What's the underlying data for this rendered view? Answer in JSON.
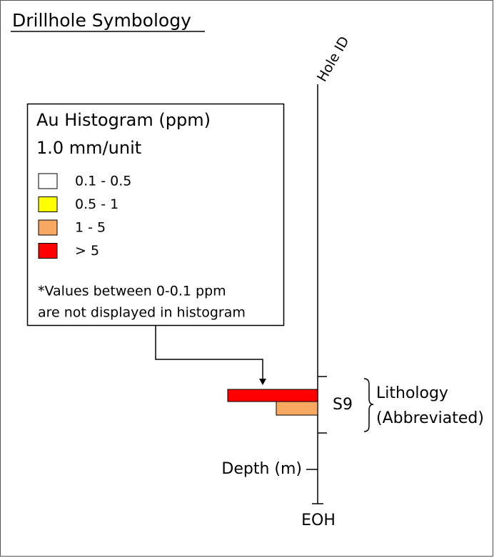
{
  "title": "Drillhole Symbology",
  "hole_label": "Hole ID",
  "legend": {
    "title": "Au Histogram (ppm)",
    "scale": "1.0 mm/unit",
    "items": [
      {
        "label": "0.1 - 0.5",
        "color": "#ffffff"
      },
      {
        "label": "0.5 - 1",
        "color": "#ffff00"
      },
      {
        "label": "1 - 5",
        "color": "#f9a862"
      },
      {
        "label": "> 5",
        "color": "#ff0000"
      }
    ],
    "note": [
      "*Values between 0-0.1 ppm",
      "are not displayed in histogram"
    ]
  },
  "interval_code": "S9",
  "lithology": [
    "Lithology",
    "(Abbreviated)"
  ],
  "depth_label": "Depth (m)",
  "end_label": "EOH"
}
